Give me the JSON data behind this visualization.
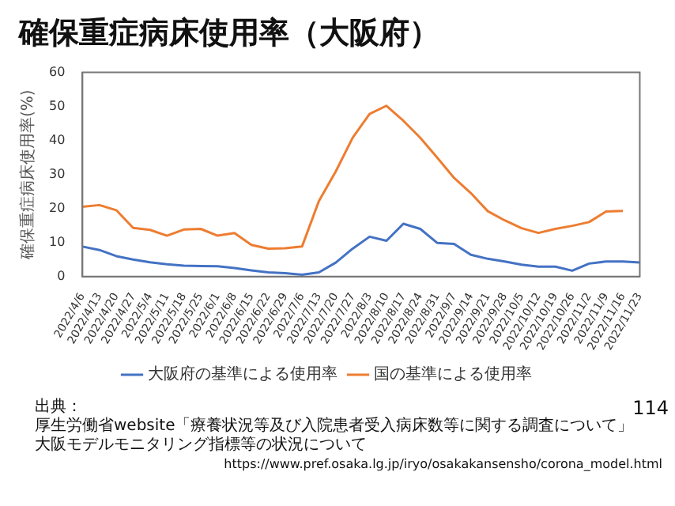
{
  "chart_data": {
    "type": "line",
    "title": "確保重症病床使用率（大阪府）",
    "ylabel": "確保重症病床使用率(%)",
    "categories": [
      "2022/4/6",
      "2022/4/13",
      "2022/4/20",
      "2022/4/27",
      "2022/5/4",
      "2022/5/11",
      "2022/5/18",
      "2022/5/25",
      "2022/6/1",
      "2022/6/8",
      "2022/6/15",
      "2022/6/22",
      "2022/6/29",
      "2022/7/6",
      "2022/7/13",
      "2022/7/20",
      "2022/7/27",
      "2022/8/3",
      "2022/8/10",
      "2022/8/17",
      "2022/8/24",
      "2022/8/31",
      "2022/9/7",
      "2022/9/14",
      "2022/9/21",
      "2022/9/28",
      "2022/10/5",
      "2022/10/12",
      "2022/10/19",
      "2022/10/26",
      "2022/11/2",
      "2022/11/9",
      "2022/11/16",
      "2022/11/23"
    ],
    "series": [
      {
        "name": "大阪府の基準による使用率",
        "color": "#4472c4",
        "values": [
          8.8,
          7.8,
          6,
          5,
          4.2,
          3.6,
          3.2,
          3.1,
          3,
          2.5,
          1.8,
          1.2,
          1,
          0.5,
          1.2,
          4.1,
          8.2,
          11.7,
          10.5,
          15.5,
          14,
          9.9,
          9.6,
          6.4,
          5.2,
          4.4,
          3.5,
          2.9,
          2.9,
          1.7,
          3.8,
          4.4,
          4.4,
          4.1
        ]
      },
      {
        "name": "国の基準による使用率",
        "color": "#ed7d31",
        "values": [
          20.5,
          21,
          19.5,
          14.3,
          13.7,
          12,
          13.8,
          14,
          12,
          12.8,
          9.3,
          8.2,
          8.3,
          8.8,
          22.2,
          30.9,
          40.8,
          47.8,
          50.2,
          45.8,
          40.8,
          35,
          29,
          24.5,
          19.2,
          16.5,
          14.2,
          12.8,
          14,
          14.9,
          16,
          19.1,
          19.3,
          null
        ]
      }
    ],
    "ylim": [
      0,
      60
    ],
    "yticks": [
      0,
      10,
      20,
      30,
      40,
      50,
      60
    ],
    "grid": false,
    "legend": "bottom",
    "marker": "none",
    "line_style": "solid",
    "annotations": [
      "出典：",
      "厚生労働省website「療養状況等及び入院患者受入病床数等に関する調査について」",
      "大阪モデルモニタリング指標等の状況について",
      "https://www.pref.osaka.lg.jp/iryo/osakakansensho/corona_model.html",
      "114"
    ]
  }
}
